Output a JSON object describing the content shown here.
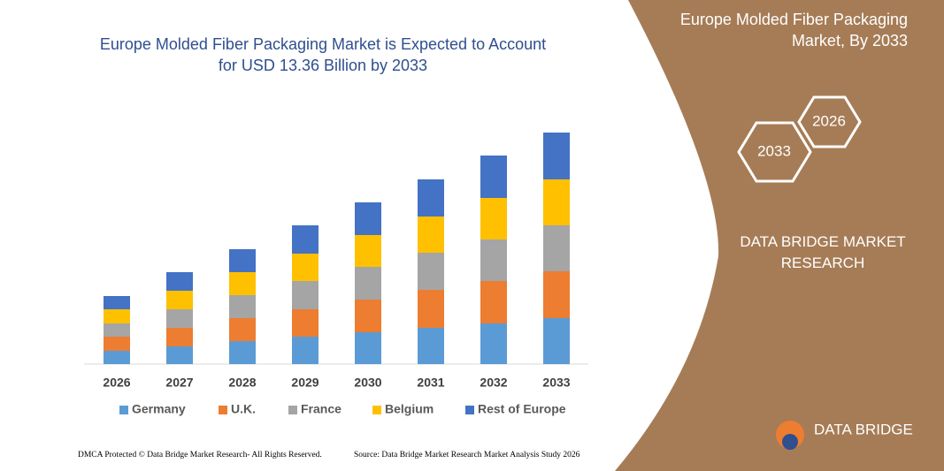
{
  "chart_data": {
    "type": "stacked-bar",
    "title": "Europe Molded Fiber Packaging Market is Expected to Account for USD 13.36 Billion by 2033",
    "categories": [
      "2026",
      "2027",
      "2028",
      "2029",
      "2030",
      "2031",
      "2032",
      "2033"
    ],
    "series": [
      {
        "name": "Germany",
        "color": "#5b9bd5",
        "values": [
          15,
          20,
          26,
          31,
          36,
          41,
          46,
          52
        ]
      },
      {
        "name": "U.K.",
        "color": "#ed7d31",
        "values": [
          16,
          21,
          26,
          31,
          37,
          43,
          48,
          53
        ]
      },
      {
        "name": "France",
        "color": "#a5a5a5",
        "values": [
          15,
          21,
          26,
          32,
          37,
          42,
          47,
          52
        ]
      },
      {
        "name": "Belgium",
        "color": "#ffc000",
        "values": [
          16,
          21,
          26,
          31,
          36,
          41,
          47,
          52
        ]
      },
      {
        "name": "Rest of Europe",
        "color": "#4472c4",
        "values": [
          15,
          21,
          26,
          32,
          37,
          42,
          48,
          53
        ]
      }
    ]
  },
  "panel": {
    "title": "Europe Molded Fiber Packaging Market, By 2033",
    "hexagons": [
      "2033",
      "2026"
    ],
    "brand": "DATA BRIDGE MARKET RESEARCH",
    "logo": "DATA BRIDGE"
  },
  "footer": {
    "left": "DMCA Protected © Data Bridge Market Research- All Rights Reserved.",
    "right": "Source: Data Bridge Market Research  Market Analysis Study 2026"
  }
}
